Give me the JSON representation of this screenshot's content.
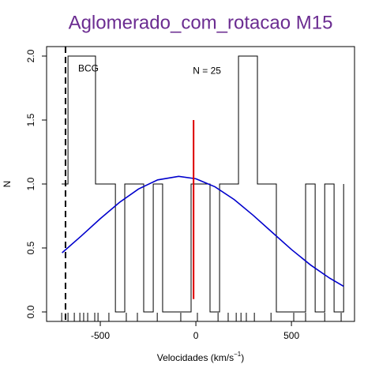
{
  "chart_data": {
    "type": "step",
    "title": "Aglomerado_com_rotacao M15",
    "xlabel": "Velocidades  (km/s",
    "xlabel_sup": "−1",
    "xlabel_end": ")",
    "ylabel": "N",
    "xlim": [
      -781,
      830
    ],
    "ylim": [
      -0.074,
      2.074
    ],
    "xticks": [
      -500,
      0,
      500
    ],
    "yticks": [
      {
        "value": 0,
        "label": "0.0"
      },
      {
        "value": 0.5,
        "label": "0.5"
      },
      {
        "value": 1,
        "label": "1.0"
      },
      {
        "value": 1.5,
        "label": "1.5"
      },
      {
        "value": 2,
        "label": "2.0"
      }
    ],
    "series": [
      {
        "name": "histograma",
        "color": "#000000",
        "x": [
          -702,
          -669,
          -525,
          -421,
          -372,
          -273,
          -223,
          -174,
          -25,
          74,
          124,
          223,
          322,
          421,
          574,
          624,
          674,
          723,
          773
        ],
        "values": [
          1,
          2,
          1,
          0,
          1,
          0,
          1,
          0,
          1,
          0,
          1,
          2,
          1,
          0,
          1,
          0,
          1,
          0,
          1
        ]
      },
      {
        "name": "gaussiana",
        "color": "#0000cc",
        "x": [
          -700,
          -600,
          -500,
          -400,
          -300,
          -200,
          -90,
          0,
          100,
          200,
          300,
          400,
          500,
          600,
          700,
          773
        ],
        "values": [
          0.462,
          0.593,
          0.729,
          0.856,
          0.961,
          1.032,
          1.06,
          1.041,
          0.978,
          0.879,
          0.755,
          0.621,
          0.488,
          0.367,
          0.264,
          0.2
        ]
      }
    ],
    "rug": [
      -702,
      -669,
      -636,
      -607,
      -587,
      -566,
      -529,
      -512,
      -455,
      -364,
      -306,
      -202,
      -79,
      8,
      116,
      169,
      211,
      236,
      264,
      306,
      393,
      512,
      574,
      674,
      760
    ],
    "mean_line": {
      "x": -12,
      "y": [
        0.1,
        1.5
      ],
      "color": "#dd0000"
    },
    "bcg_line": {
      "x": -682
    },
    "annotations": [
      {
        "text": "BCG",
        "x": -562,
        "y": 1.9
      },
      {
        "text": "N =  25",
        "x": 58,
        "y": 1.88
      }
    ]
  }
}
